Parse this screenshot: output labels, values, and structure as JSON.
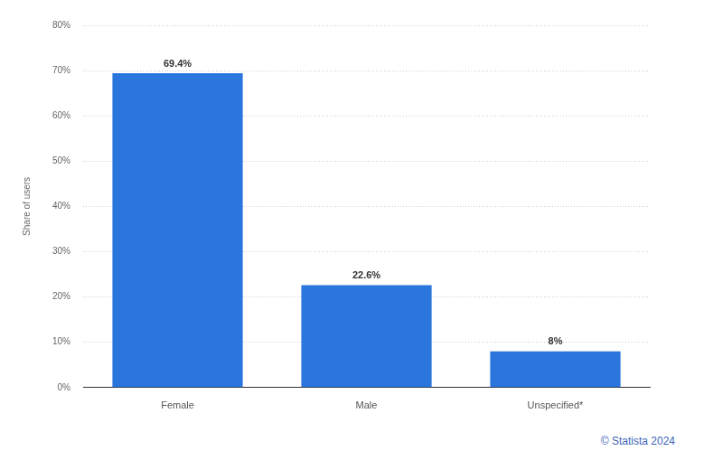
{
  "chart_data": {
    "type": "bar",
    "categories": [
      "Female",
      "Male",
      "Unspecified*"
    ],
    "values": [
      69.4,
      22.6,
      8
    ],
    "value_labels": [
      "69.4%",
      "22.6%",
      "8%"
    ],
    "data_labels": true,
    "color": "#2a76dd",
    "ylabel": "Share of users",
    "ylim": [
      0,
      80
    ],
    "yticks": [
      {
        "value": 0,
        "label": "0%"
      },
      {
        "value": 10,
        "label": "10%"
      },
      {
        "value": 20,
        "label": "20%"
      },
      {
        "value": 30,
        "label": "30%"
      },
      {
        "value": 40,
        "label": "40%"
      },
      {
        "value": 50,
        "label": "50%"
      },
      {
        "value": 60,
        "label": "60%"
      },
      {
        "value": 70,
        "label": "70%"
      },
      {
        "value": 80,
        "label": "80%"
      }
    ],
    "grid": true,
    "source": "© Statista 2024"
  }
}
